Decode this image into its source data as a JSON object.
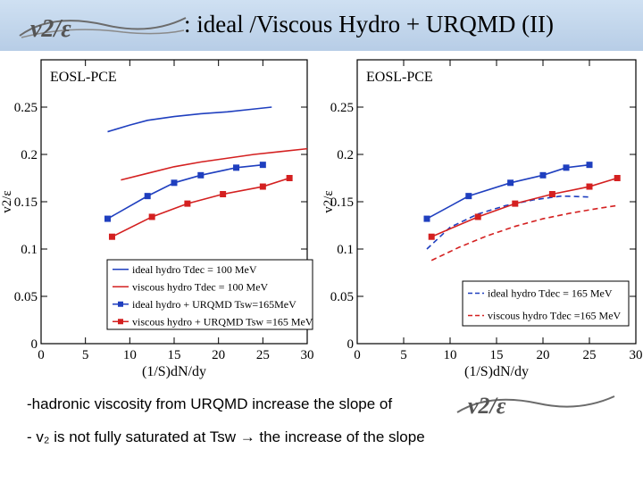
{
  "header": {
    "title": ":  ideal /Viscous Hydro + URQMD (II)",
    "logo_text": "v2/ε"
  },
  "colors": {
    "blue": "#1f3fbf",
    "red": "#d42020",
    "header_bg": "#c3d6ec"
  },
  "chart_data": [
    {
      "type": "line",
      "panel_label": "EOSL-PCE",
      "xlabel": "(1/S)dN/dy",
      "ylabel": "v2/ε",
      "xlim": [
        0,
        30
      ],
      "ylim": [
        0,
        0.3
      ],
      "x_ticks": [
        "0",
        "5",
        "10",
        "15",
        "20",
        "25",
        "30"
      ],
      "y_ticks": [
        "0",
        "0.05",
        "0.1",
        "0.15",
        "0.2",
        "0.25"
      ],
      "legend_position": "bottom-right",
      "series": [
        {
          "name": "ideal hydro Tdec = 100 MeV",
          "color": "#1f3fbf",
          "style": "solid",
          "markers": false,
          "x": [
            7.5,
            10,
            12,
            15,
            18,
            21,
            24,
            26
          ],
          "y": [
            0.224,
            0.231,
            0.236,
            0.24,
            0.243,
            0.245,
            0.248,
            0.25
          ]
        },
        {
          "name": "viscous hydro Tdec = 100 MeV",
          "color": "#d42020",
          "style": "solid",
          "markers": false,
          "x": [
            9,
            12,
            15,
            18,
            21,
            24,
            27,
            30
          ],
          "y": [
            0.173,
            0.18,
            0.187,
            0.192,
            0.196,
            0.2,
            0.203,
            0.206
          ]
        },
        {
          "name": "ideal hydro + URQMD Tsw=165MeV",
          "color": "#1f3fbf",
          "style": "solid",
          "markers": true,
          "x": [
            7.5,
            12,
            15,
            18,
            22,
            25
          ],
          "y": [
            0.132,
            0.156,
            0.17,
            0.178,
            0.186,
            0.189
          ]
        },
        {
          "name": "viscous hydro + URQMD Tsw =165 MeV",
          "color": "#d42020",
          "style": "solid",
          "markers": true,
          "x": [
            8,
            12.5,
            16.5,
            20.5,
            25,
            28
          ],
          "y": [
            0.113,
            0.134,
            0.148,
            0.158,
            0.166,
            0.175
          ]
        }
      ]
    },
    {
      "type": "line",
      "panel_label": "EOSL-PCE",
      "xlabel": "(1/S)dN/dy",
      "ylabel": "v2/ε",
      "xlim": [
        0,
        30
      ],
      "ylim": [
        0,
        0.3
      ],
      "x_ticks": [
        "0",
        "5",
        "10",
        "15",
        "20",
        "25",
        "30"
      ],
      "y_ticks": [
        "0",
        "0.05",
        "0.1",
        "0.15",
        "0.2",
        "0.25"
      ],
      "legend_position": "bottom-right",
      "series": [
        {
          "name": "ideal hydro Tdec = 165 MeV",
          "color": "#1f3fbf",
          "style": "dash",
          "markers": false,
          "x": [
            7.5,
            10,
            13,
            16,
            19,
            22,
            25
          ],
          "y": [
            0.1,
            0.123,
            0.137,
            0.146,
            0.152,
            0.156,
            0.155
          ]
        },
        {
          "name": "viscous hydro Tdec =165 MeV",
          "color": "#d42020",
          "style": "dash",
          "markers": false,
          "x": [
            8,
            11,
            14,
            17,
            20,
            23,
            26,
            28
          ],
          "y": [
            0.088,
            0.102,
            0.114,
            0.124,
            0.132,
            0.138,
            0.143,
            0.146
          ]
        },
        {
          "name": "ideal hydro + URQMD",
          "color": "#1f3fbf",
          "style": "solid",
          "markers": true,
          "x": [
            7.5,
            12,
            16.5,
            20,
            22.5,
            25
          ],
          "y": [
            0.132,
            0.156,
            0.17,
            0.178,
            0.186,
            0.189
          ]
        },
        {
          "name": "viscous hydro + URQMD",
          "color": "#d42020",
          "style": "solid",
          "markers": true,
          "x": [
            8,
            13,
            17,
            21,
            25,
            28
          ],
          "y": [
            0.113,
            0.134,
            0.148,
            0.158,
            0.166,
            0.175
          ]
        }
      ]
    }
  ],
  "bullets": [
    "-hadronic viscosity from URQMD increase the slope of",
    "- v₂ is not fully saturated at Tsw  → the increase of the slope"
  ]
}
